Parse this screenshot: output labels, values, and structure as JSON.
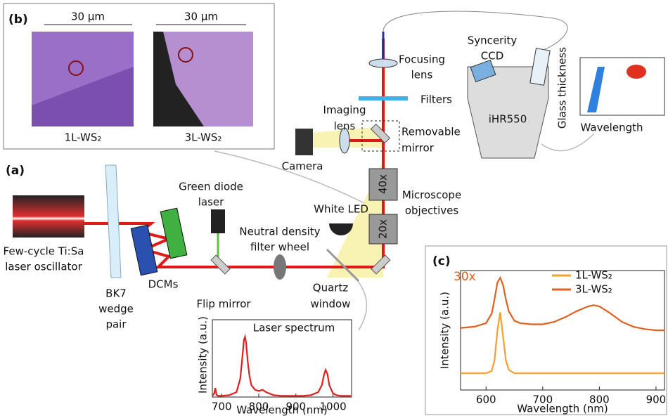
{
  "panel_b": {
    "label": "(b)",
    "scale_bars": [
      "30 µm",
      "30 µm"
    ],
    "samples": [
      "1L-WS₂",
      "3L-WS₂"
    ]
  },
  "panel_a": {
    "label": "(a)",
    "oscillator": [
      "Few-cycle Ti:Sa",
      "laser oscillator"
    ],
    "wedge": [
      "BK7",
      "wedge",
      "pair"
    ],
    "dcms": "DCMs",
    "green_laser": [
      "Green diode",
      "laser"
    ],
    "nd_filter": [
      "Neutral density",
      "filter wheel"
    ],
    "flip_mirror": "Flip mirror",
    "white_led": "White LED",
    "quartz": [
      "Quartz",
      "window"
    ],
    "camera": "Camera",
    "imaging_lens": [
      "Imaging",
      "lens"
    ],
    "removable_mirror": [
      "Removable",
      "mirror"
    ],
    "objectives": [
      "Microscope",
      "objectives"
    ],
    "obj_40": "40x",
    "obj_20": "20x",
    "focusing_lens": [
      "Focusing",
      "lens"
    ],
    "filters": "Filters",
    "ccd": [
      "Syncerity",
      "CCD"
    ],
    "spectrometer": "iHR550",
    "map_y": "Glass thickness",
    "map_x": "Wavelength"
  },
  "laser_spectrum": {
    "title": "Laser spectrum",
    "x_label": "Wavelength (nm)",
    "y_label": "Intensity (a.u.)",
    "color": "#e02020",
    "x": [
      675,
      680,
      683,
      686,
      690,
      700,
      720,
      740,
      750,
      755,
      760,
      763,
      766,
      770,
      775,
      780,
      790,
      800,
      810,
      820,
      840,
      860,
      880,
      900,
      920,
      940,
      960,
      970,
      975,
      980,
      985,
      990,
      1000,
      1010,
      1020,
      1040,
      1048
    ],
    "values": [
      0.02,
      0.06,
      0.15,
      0.04,
      0.02,
      0.02,
      0.03,
      0.08,
      0.3,
      0.6,
      0.95,
      1.0,
      0.9,
      0.6,
      0.35,
      0.2,
      0.12,
      0.1,
      0.12,
      0.08,
      0.03,
      0.02,
      0.02,
      0.02,
      0.02,
      0.03,
      0.08,
      0.2,
      0.35,
      0.45,
      0.38,
      0.2,
      0.06,
      0.03,
      0.02,
      0.02,
      0.02
    ],
    "xlim": [
      675,
      1050
    ],
    "ylim": [
      0,
      1.05
    ],
    "xticks": [
      700,
      800,
      900,
      1000
    ]
  },
  "panel_c": {
    "label": "(c)",
    "annotation": "30x",
    "x_label": "Wavelength (nm)",
    "y_label": "Intensity (a.u.)",
    "x": [
      555,
      580,
      600,
      610,
      615,
      620,
      625,
      630,
      635,
      640,
      650,
      660,
      680,
      700,
      720,
      740,
      760,
      780,
      790,
      800,
      820,
      840,
      860,
      880,
      900,
      915
    ],
    "series": [
      {
        "name": "1L-WS₂",
        "color": "#f5a030",
        "values": [
          0.14,
          0.14,
          0.14,
          0.16,
          0.25,
          0.5,
          0.65,
          0.45,
          0.25,
          0.17,
          0.14,
          0.14,
          0.14,
          0.14,
          0.14,
          0.14,
          0.14,
          0.14,
          0.14,
          0.14,
          0.14,
          0.14,
          0.14,
          0.14,
          0.14,
          0.14
        ]
      },
      {
        "name": "3L-WS₂",
        "color": "#e06020",
        "values": [
          0.52,
          0.53,
          0.56,
          0.64,
          0.76,
          0.9,
          0.94,
          0.88,
          0.76,
          0.66,
          0.58,
          0.56,
          0.55,
          0.55,
          0.57,
          0.61,
          0.66,
          0.7,
          0.71,
          0.7,
          0.64,
          0.57,
          0.53,
          0.51,
          0.5,
          0.5
        ]
      }
    ],
    "xlim": [
      555,
      915
    ],
    "ylim": [
      0,
      1
    ],
    "xticks": [
      600,
      700,
      800,
      900
    ]
  }
}
